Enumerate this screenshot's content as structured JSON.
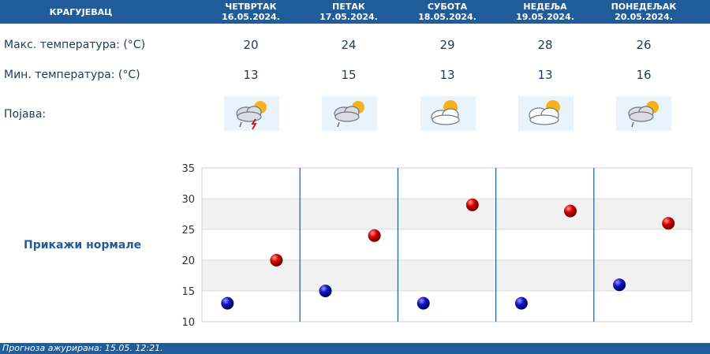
{
  "header": {
    "city": "КРАГУЈЕВАЦ"
  },
  "days": [
    {
      "name": "ЧЕТВРТАК",
      "date": "16.05.2024.",
      "max": "20",
      "min": "13",
      "icon": "cloud-sun-thunder-rain-icon"
    },
    {
      "name": "ПЕТАК",
      "date": "17.05.2024.",
      "max": "24",
      "min": "15",
      "icon": "cloud-sun-rain-icon"
    },
    {
      "name": "СУБОТА",
      "date": "18.05.2024.",
      "max": "29",
      "min": "13",
      "icon": "sun-cloud-icon"
    },
    {
      "name": "НЕДЕЉА",
      "date": "19.05.2024.",
      "max": "28",
      "min": "13",
      "icon": "sun-cloud-icon"
    },
    {
      "name": "ПОНЕДЕЉАК",
      "date": "20.05.2024.",
      "max": "26",
      "min": "16",
      "icon": "cloud-sun-rain-icon"
    }
  ],
  "labels": {
    "max_temp": "Макс. температура: (°C)",
    "min_temp": "Мин. температура: (°C)",
    "phenomenon": "Појава:"
  },
  "normals_link": "Прикажи нормале",
  "footer": {
    "text": "Прогноза ажурирана:  15.05.  12:21."
  },
  "colors": {
    "header": "#1f5c99",
    "max_marker": "#cc0000",
    "min_marker": "#1010b0"
  },
  "chart_data": {
    "type": "scatter",
    "categories": [
      "ЧЕТВРТАК",
      "ПЕТАК",
      "СУБОТА",
      "НЕДЕЉА",
      "ПОНЕДЕЉАК"
    ],
    "series": [
      {
        "values": [
          13,
          15,
          13,
          13,
          16
        ]
      },
      {
        "values": [
          20,
          24,
          29,
          28,
          26
        ]
      }
    ],
    "yticks": [
      10,
      15,
      20,
      25,
      30,
      35
    ],
    "ylim": [
      10,
      35
    ],
    "grid": true
  }
}
